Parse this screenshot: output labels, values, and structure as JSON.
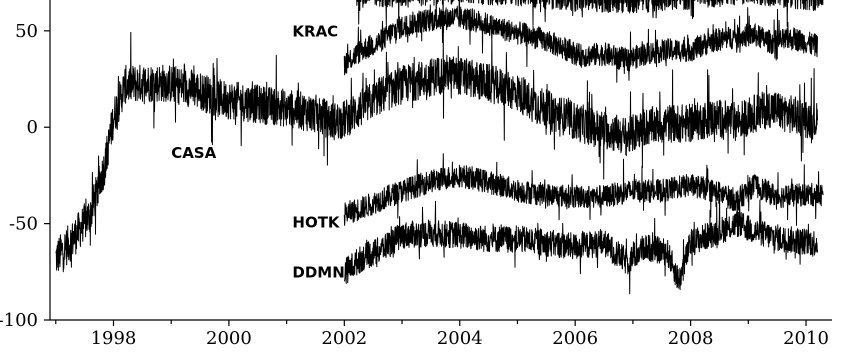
{
  "chart_data": {
    "type": "line",
    "title": "",
    "xlabel": "",
    "ylabel": "",
    "xlim": [
      1996.9,
      2010.45
    ],
    "ylim": [
      -100,
      66
    ],
    "x_ticks": [
      1998,
      2000,
      2002,
      2004,
      2006,
      2008,
      2010
    ],
    "x_tick_labels": [
      "1998",
      "2000",
      "2002",
      "2004",
      "2006",
      "2008",
      "2010"
    ],
    "y_ticks": [
      50,
      0,
      -50,
      -100
    ],
    "y_tick_labels": [
      "50",
      "0",
      "-50",
      "-100"
    ],
    "grid": false,
    "legend": "none",
    "series": [
      {
        "name": "CASA",
        "label_at": [
          1999.0,
          -16
        ],
        "noise": 10,
        "spikes": 0.06,
        "points": [
          [
            1997.0,
            -68
          ],
          [
            1997.3,
            -58
          ],
          [
            1997.6,
            -45
          ],
          [
            1997.85,
            -20
          ],
          [
            1998.0,
            5
          ],
          [
            1998.2,
            22
          ],
          [
            1998.5,
            23
          ],
          [
            1998.9,
            23
          ],
          [
            1999.4,
            20
          ],
          [
            1999.8,
            15
          ],
          [
            2000.5,
            12
          ],
          [
            2001.0,
            10
          ],
          [
            2001.5,
            7
          ],
          [
            2001.8,
            3
          ],
          [
            2002.0,
            4
          ],
          [
            2002.3,
            10
          ],
          [
            2002.6,
            16
          ],
          [
            2003.0,
            22
          ],
          [
            2003.5,
            26
          ],
          [
            2003.8,
            28
          ],
          [
            2004.2,
            25
          ],
          [
            2004.6,
            22
          ],
          [
            2005.0,
            18
          ],
          [
            2005.3,
            12
          ],
          [
            2005.7,
            7
          ],
          [
            2006.0,
            3
          ],
          [
            2006.3,
            0
          ],
          [
            2006.6,
            -2
          ],
          [
            2006.9,
            -5
          ],
          [
            2007.2,
            0
          ],
          [
            2007.6,
            2
          ],
          [
            2008.0,
            2
          ],
          [
            2008.4,
            5
          ],
          [
            2008.8,
            3
          ],
          [
            2009.1,
            7
          ],
          [
            2009.4,
            10
          ],
          [
            2009.8,
            6
          ],
          [
            2010.2,
            3
          ]
        ]
      },
      {
        "name": "KRAC",
        "label_at": [
          2001.1,
          47
        ],
        "noise": 6,
        "spikes": 0.04,
        "points": [
          [
            2002.0,
            33
          ],
          [
            2002.3,
            40
          ],
          [
            2002.6,
            44
          ],
          [
            2002.9,
            51
          ],
          [
            2003.3,
            55
          ],
          [
            2003.6,
            56
          ],
          [
            2004.0,
            57
          ],
          [
            2004.3,
            55
          ],
          [
            2004.6,
            52
          ],
          [
            2005.0,
            49
          ],
          [
            2005.4,
            46
          ],
          [
            2005.8,
            41
          ],
          [
            2006.1,
            37
          ],
          [
            2006.5,
            38
          ],
          [
            2006.9,
            35
          ],
          [
            2007.2,
            38
          ],
          [
            2007.6,
            40
          ],
          [
            2008.0,
            40
          ],
          [
            2008.4,
            45
          ],
          [
            2008.8,
            47
          ],
          [
            2009.1,
            48
          ],
          [
            2009.4,
            44
          ],
          [
            2009.8,
            46
          ],
          [
            2010.2,
            42
          ]
        ]
      },
      {
        "name": "HOTK",
        "label_at": [
          2001.1,
          -52
        ],
        "noise": 6,
        "spikes": 0.03,
        "points": [
          [
            2002.0,
            -45
          ],
          [
            2002.3,
            -42
          ],
          [
            2002.6,
            -38
          ],
          [
            2003.0,
            -33
          ],
          [
            2003.5,
            -28
          ],
          [
            2004.0,
            -25
          ],
          [
            2004.3,
            -27
          ],
          [
            2004.7,
            -30
          ],
          [
            2005.0,
            -33
          ],
          [
            2005.5,
            -35
          ],
          [
            2006.0,
            -36
          ],
          [
            2006.5,
            -36
          ],
          [
            2007.0,
            -33
          ],
          [
            2007.5,
            -33
          ],
          [
            2008.0,
            -30
          ],
          [
            2008.4,
            -33
          ],
          [
            2008.8,
            -38
          ],
          [
            2009.1,
            -30
          ],
          [
            2009.5,
            -36
          ],
          [
            2010.0,
            -35
          ],
          [
            2010.3,
            -35
          ]
        ]
      },
      {
        "name": "DDMN",
        "label_at": [
          2001.1,
          -78
        ],
        "noise": 7,
        "spikes": 0.05,
        "points": [
          [
            2002.0,
            -75
          ],
          [
            2002.3,
            -68
          ],
          [
            2002.6,
            -64
          ],
          [
            2003.0,
            -56
          ],
          [
            2003.5,
            -55
          ],
          [
            2004.0,
            -56
          ],
          [
            2004.5,
            -58
          ],
          [
            2005.0,
            -58
          ],
          [
            2005.5,
            -60
          ],
          [
            2006.0,
            -62
          ],
          [
            2006.5,
            -60
          ],
          [
            2006.9,
            -70
          ],
          [
            2007.2,
            -62
          ],
          [
            2007.6,
            -65
          ],
          [
            2007.8,
            -80
          ],
          [
            2008.0,
            -60
          ],
          [
            2008.4,
            -55
          ],
          [
            2008.8,
            -50
          ],
          [
            2009.2,
            -55
          ],
          [
            2009.6,
            -58
          ],
          [
            2010.2,
            -60
          ]
        ]
      },
      {
        "name": "",
        "noise": 8,
        "spikes": 0.04,
        "points": [
          [
            2002.2,
            70
          ],
          [
            2003.0,
            70
          ],
          [
            2004.0,
            72
          ],
          [
            2005.0,
            71
          ],
          [
            2006.0,
            68
          ],
          [
            2007.0,
            67
          ],
          [
            2008.0,
            69
          ],
          [
            2009.0,
            72
          ],
          [
            2010.3,
            68
          ]
        ]
      }
    ]
  }
}
